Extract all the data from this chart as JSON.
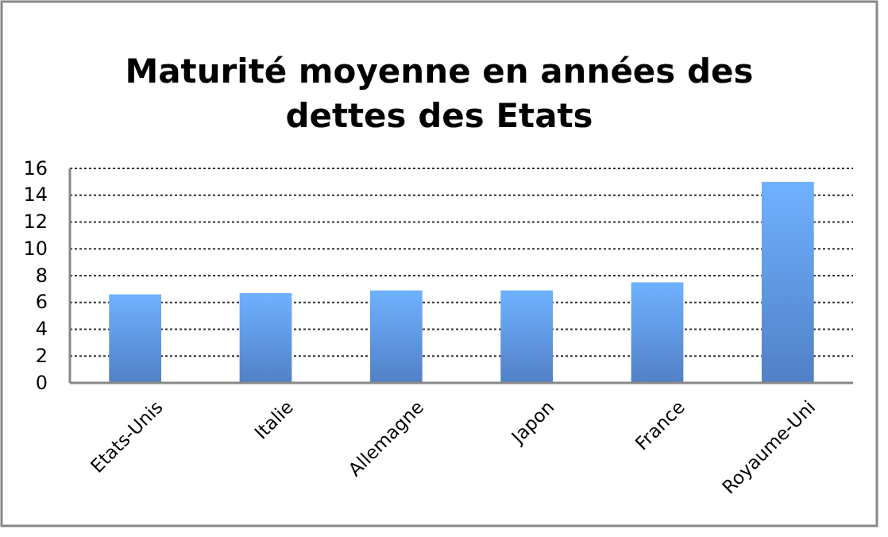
{
  "chart_data": {
    "type": "bar",
    "title": "Maturité moyenne en années des dettes des Etats",
    "categories": [
      "Etats-Unis",
      "Italie",
      "Allemagne",
      "Japon",
      "France",
      "Royaume-Uni"
    ],
    "values": [
      6.6,
      6.7,
      6.9,
      6.9,
      7.5,
      15.0
    ],
    "color": "#5a8fdc",
    "ylim": [
      0,
      16
    ],
    "yticks": [
      0,
      2,
      4,
      6,
      8,
      10,
      12,
      14,
      16
    ],
    "grid": "y"
  }
}
